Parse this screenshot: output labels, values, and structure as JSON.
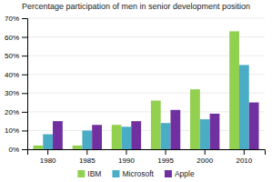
{
  "chart_data": {
    "type": "bar",
    "title": "Percentage participation of men in senior development position",
    "categories": [
      "1980",
      "1985",
      "1990",
      "1995",
      "2000",
      "2010"
    ],
    "series": [
      {
        "name": "IBM",
        "color": "#92d050",
        "values": [
          2,
          2,
          13,
          26,
          32,
          63
        ]
      },
      {
        "name": "Microsoft",
        "color": "#4bacc6",
        "values": [
          8,
          10,
          12,
          14,
          16,
          45
        ]
      },
      {
        "name": "Apple",
        "color": "#7030a0",
        "values": [
          15,
          13,
          15,
          21,
          19,
          25
        ]
      }
    ],
    "ylim": [
      0,
      70
    ],
    "yticks": [
      {
        "value": 0,
        "label": "0%"
      },
      {
        "value": 10,
        "label": "10%"
      },
      {
        "value": 20,
        "label": "20%"
      },
      {
        "value": 30,
        "label": "30%"
      },
      {
        "value": 40,
        "label": "40%"
      },
      {
        "value": 50,
        "label": "50%"
      },
      {
        "value": 60,
        "label": "60%"
      },
      {
        "value": 70,
        "label": "70%"
      }
    ],
    "grid": true,
    "legend": "bottom"
  }
}
